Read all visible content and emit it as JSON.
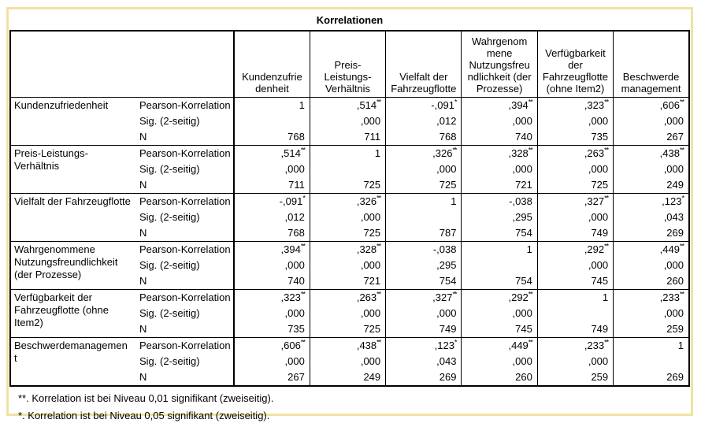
{
  "title": "Korrelationen",
  "colors": {
    "frame": "#f0e3a1",
    "table_border": "#000000",
    "background": "#ffffff",
    "text": "#000000"
  },
  "table": {
    "stat_labels": [
      "Pearson-Korrelation",
      "Sig. (2-seitig)",
      "N"
    ],
    "column_headers": [
      "Kundenzufrie\ndenheit",
      "Preis-\nLeistungs-\nVerhältnis",
      "Vielfalt der\nFahrzeugflotte",
      "Wahrgenom\nmene\nNutzungsfreu\nndlichkeit (der\nProzesse)",
      "Verfügbarkeit\nder\nFahrzeugflotte\n(ohne Item2)",
      "Beschwerde\nmanagement"
    ],
    "rows": [
      {
        "label": "Kundenzufriedenheit",
        "pearson": [
          {
            "v": "1"
          },
          {
            "v": ",514",
            "sup": "**"
          },
          {
            "v": "-,091",
            "sup": "*"
          },
          {
            "v": ",394",
            "sup": "**"
          },
          {
            "v": ",323",
            "sup": "**"
          },
          {
            "v": ",606",
            "sup": "**"
          }
        ],
        "sig": [
          "",
          ",000",
          ",012",
          ",000",
          ",000",
          ",000"
        ],
        "n": [
          "768",
          "711",
          "768",
          "740",
          "735",
          "267"
        ]
      },
      {
        "label": "Preis-Leistungs-\nVerhältnis",
        "pearson": [
          {
            "v": ",514",
            "sup": "**"
          },
          {
            "v": "1"
          },
          {
            "v": ",326",
            "sup": "**"
          },
          {
            "v": ",328",
            "sup": "**"
          },
          {
            "v": ",263",
            "sup": "**"
          },
          {
            "v": ",438",
            "sup": "**"
          }
        ],
        "sig": [
          ",000",
          "",
          ",000",
          ",000",
          ",000",
          ",000"
        ],
        "n": [
          "711",
          "725",
          "725",
          "721",
          "725",
          "249"
        ]
      },
      {
        "label": "Vielfalt der Fahrzeugflotte",
        "pearson": [
          {
            "v": "-,091",
            "sup": "*"
          },
          {
            "v": ",326",
            "sup": "**"
          },
          {
            "v": "1"
          },
          {
            "v": "-,038"
          },
          {
            "v": ",327",
            "sup": "**"
          },
          {
            "v": ",123",
            "sup": "*"
          }
        ],
        "sig": [
          ",012",
          ",000",
          "",
          ",295",
          ",000",
          ",043"
        ],
        "n": [
          "768",
          "725",
          "787",
          "754",
          "749",
          "269"
        ]
      },
      {
        "label": "Wahrgenommene\nNutzungsfreundlichkeit\n(der Prozesse)",
        "pearson": [
          {
            "v": ",394",
            "sup": "**"
          },
          {
            "v": ",328",
            "sup": "**"
          },
          {
            "v": "-,038"
          },
          {
            "v": "1"
          },
          {
            "v": ",292",
            "sup": "**"
          },
          {
            "v": ",449",
            "sup": "**"
          }
        ],
        "sig": [
          ",000",
          ",000",
          ",295",
          "",
          ",000",
          ",000"
        ],
        "n": [
          "740",
          "721",
          "754",
          "754",
          "745",
          "260"
        ]
      },
      {
        "label": "Verfügbarkeit der\nFahrzeugflotte (ohne\nItem2)",
        "pearson": [
          {
            "v": ",323",
            "sup": "**"
          },
          {
            "v": ",263",
            "sup": "**"
          },
          {
            "v": ",327",
            "sup": "**"
          },
          {
            "v": ",292",
            "sup": "**"
          },
          {
            "v": "1"
          },
          {
            "v": ",233",
            "sup": "**"
          }
        ],
        "sig": [
          ",000",
          ",000",
          ",000",
          ",000",
          "",
          ",000"
        ],
        "n": [
          "735",
          "725",
          "749",
          "745",
          "749",
          "259"
        ]
      },
      {
        "label": "Beschwerdemanagemen\nt",
        "pearson": [
          {
            "v": ",606",
            "sup": "**"
          },
          {
            "v": ",438",
            "sup": "**"
          },
          {
            "v": ",123",
            "sup": "*"
          },
          {
            "v": ",449",
            "sup": "**"
          },
          {
            "v": ",233",
            "sup": "**"
          },
          {
            "v": "1"
          }
        ],
        "sig": [
          ",000",
          ",000",
          ",043",
          ",000",
          ",000",
          ""
        ],
        "n": [
          "267",
          "249",
          "269",
          "260",
          "259",
          "269"
        ]
      }
    ]
  },
  "footnotes": [
    "**. Korrelation ist bei Niveau 0,01 signifikant (zweiseitig).",
    "*. Korrelation ist bei Niveau 0,05 signifikant (zweiseitig)."
  ]
}
